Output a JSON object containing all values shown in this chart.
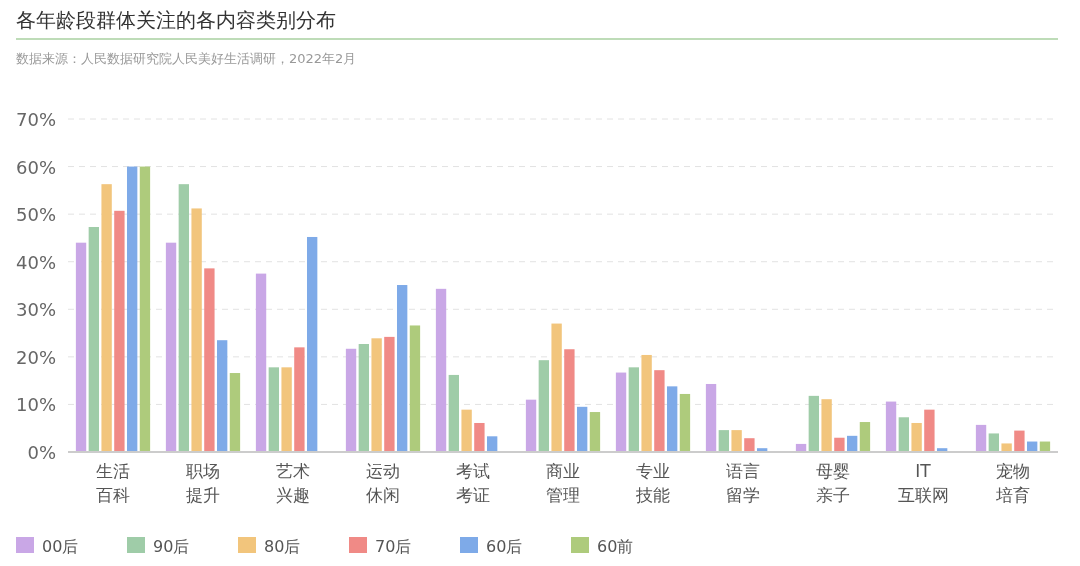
{
  "chart_data": {
    "type": "bar",
    "title": "各年龄段群体关注的各内容类别分布",
    "annotations": [
      "数据来源：人民数据研究院人民美好生活调研，2022年2月"
    ],
    "categories": [
      "生活百科",
      "职场提升",
      "艺术兴趣",
      "运动休闲",
      "考试考证",
      "商业管理",
      "专业技能",
      "语言留学",
      "母婴亲子",
      "IT互联网",
      "宠物培育"
    ],
    "series": [
      {
        "name": "00后",
        "color": "#c9a7e6",
        "values": [
          44,
          44,
          37.5,
          21.7,
          34.3,
          11,
          16.7,
          14.3,
          1.7,
          10.6,
          5.7
        ]
      },
      {
        "name": "90后",
        "color": "#9fcca8",
        "values": [
          47.3,
          56.3,
          17.8,
          22.7,
          16.2,
          19.3,
          17.8,
          4.6,
          11.8,
          7.3,
          3.9
        ]
      },
      {
        "name": "80后",
        "color": "#f2c57c",
        "values": [
          56.3,
          51.2,
          17.8,
          23.9,
          8.9,
          27,
          20.4,
          4.6,
          11.1,
          6.1,
          1.8
        ]
      },
      {
        "name": "70后",
        "color": "#f08a86",
        "values": [
          50.7,
          38.6,
          22,
          24.2,
          6.1,
          21.6,
          17.2,
          2.9,
          3,
          8.9,
          4.5
        ]
      },
      {
        "name": "60后",
        "color": "#7eaae8",
        "values": [
          60,
          23.5,
          45.2,
          35.1,
          3.3,
          9.5,
          13.8,
          0.8,
          3.4,
          0.8,
          2.2
        ]
      },
      {
        "name": "60前",
        "color": "#aecb7c",
        "values": [
          60,
          16.6,
          null,
          26.6,
          null,
          8.4,
          12.2,
          null,
          6.3,
          null,
          2.2
        ]
      }
    ],
    "ylim": [
      0,
      70
    ],
    "yticks": [
      {
        "value": 0,
        "label": "0%"
      },
      {
        "value": 10,
        "label": "10%"
      },
      {
        "value": 20,
        "label": "20%"
      },
      {
        "value": 30,
        "label": "30%"
      },
      {
        "value": 40,
        "label": "40%"
      },
      {
        "value": 50,
        "label": "50%"
      },
      {
        "value": 60,
        "label": "60%"
      },
      {
        "value": 70,
        "label": "70%"
      }
    ],
    "grid": "y",
    "legend": "bottom"
  }
}
